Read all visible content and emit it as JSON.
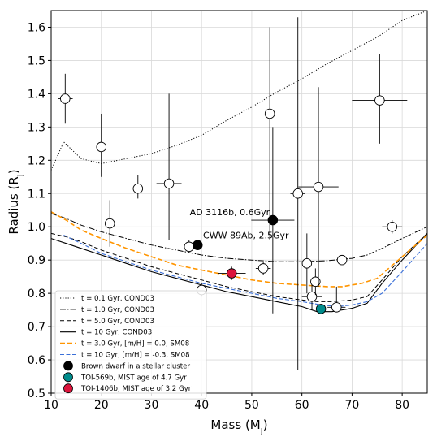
{
  "chart_data": {
    "type": "scatter",
    "xlabel": "Mass (M",
    "xlabel_sub": "J",
    "ylabel": "Radius (R",
    "ylabel_sub": "J",
    "xlim": [
      10,
      85
    ],
    "ylim": [
      0.5,
      1.65
    ],
    "xticks": [
      10,
      20,
      30,
      40,
      50,
      60,
      70,
      80
    ],
    "yticks": [
      0.5,
      0.6,
      0.7,
      0.8,
      0.9,
      1.0,
      1.1,
      1.2,
      1.3,
      1.4,
      1.5,
      1.6
    ],
    "ytick_labels": [
      "0.5",
      "0.6",
      "0.7",
      "0.8",
      "0.9",
      "1.0",
      "1.1",
      "1.2",
      "1.3",
      "1.4",
      "1.5",
      "1.6"
    ],
    "grid": true,
    "legend_position": "lower-left",
    "curves": [
      {
        "name": "t = 0.1 Gyr, COND03",
        "color": "#000000",
        "dash": "1.2,2",
        "width": 1.0,
        "x": [
          10,
          12.5,
          16,
          20,
          25,
          30,
          35,
          40,
          45,
          50,
          55,
          60,
          65,
          70,
          75,
          80,
          85
        ],
        "y": [
          1.17,
          1.255,
          1.205,
          1.19,
          1.205,
          1.22,
          1.245,
          1.275,
          1.32,
          1.36,
          1.405,
          1.445,
          1.49,
          1.53,
          1.57,
          1.62,
          1.65
        ]
      },
      {
        "name": "t = 1.0 Gyr, COND03",
        "color": "#000000",
        "dash": "7,2,1.5,2",
        "width": 1.0,
        "x": [
          10,
          13,
          16,
          20,
          25,
          30,
          35,
          40,
          45,
          50,
          55,
          60,
          65,
          70,
          73,
          76,
          80,
          85
        ],
        "y": [
          1.04,
          1.025,
          1.005,
          0.985,
          0.965,
          0.945,
          0.93,
          0.915,
          0.905,
          0.9,
          0.895,
          0.895,
          0.898,
          0.905,
          0.915,
          0.935,
          0.965,
          1.0
        ]
      },
      {
        "name": "t = 5.0 Gyr, COND03",
        "color": "#000000",
        "dash": "5,3",
        "width": 1.0,
        "x": [
          10,
          13,
          16,
          20,
          25,
          30,
          35,
          40,
          45,
          50,
          55,
          60,
          63,
          66,
          70,
          73,
          76,
          80,
          85
        ],
        "y": [
          0.98,
          0.97,
          0.955,
          0.93,
          0.905,
          0.88,
          0.86,
          0.84,
          0.82,
          0.805,
          0.79,
          0.78,
          0.775,
          0.775,
          0.78,
          0.79,
          0.84,
          0.91,
          0.98
        ]
      },
      {
        "name": "t = 10 Gyr, COND03",
        "color": "#000000",
        "dash": "",
        "width": 1.1,
        "x": [
          10,
          13,
          16,
          20,
          25,
          30,
          35,
          40,
          45,
          50,
          55,
          60,
          63,
          66,
          70,
          73,
          76,
          80,
          85
        ],
        "y": [
          0.965,
          0.95,
          0.935,
          0.915,
          0.89,
          0.865,
          0.845,
          0.825,
          0.805,
          0.79,
          0.775,
          0.76,
          0.745,
          0.745,
          0.755,
          0.77,
          0.83,
          0.9,
          0.98
        ]
      },
      {
        "name": "t = 3.0 Gyr, [m/H] = 0.0, SM08",
        "color": "#ff9500",
        "dash": "6,3",
        "width": 1.6,
        "x": [
          10,
          13,
          16,
          20,
          25,
          30,
          35,
          40,
          45,
          50,
          55,
          60,
          65,
          68,
          72,
          75,
          80,
          85
        ],
        "y": [
          1.045,
          1.02,
          0.99,
          0.965,
          0.935,
          0.91,
          0.885,
          0.87,
          0.855,
          0.84,
          0.83,
          0.825,
          0.82,
          0.82,
          0.83,
          0.845,
          0.91,
          0.975
        ]
      },
      {
        "name": "t = 10 Gyr, [m/H] = -0.3, SM08",
        "color": "#3a6fd8",
        "dash": "5,2.5",
        "width": 1.1,
        "x": [
          12.5,
          16,
          20,
          25,
          30,
          35,
          40,
          45,
          50,
          55,
          60,
          64,
          67,
          70,
          73,
          76,
          80,
          85
        ],
        "y": [
          0.975,
          0.95,
          0.92,
          0.895,
          0.87,
          0.85,
          0.83,
          0.815,
          0.8,
          0.785,
          0.775,
          0.765,
          0.76,
          0.765,
          0.775,
          0.8,
          0.865,
          0.95
        ]
      }
    ],
    "points": [
      {
        "x": 12.8,
        "y": 1.385,
        "xerr": 1.5,
        "yerr": [
          0.075,
          0.075
        ],
        "style": "open"
      },
      {
        "x": 20.0,
        "y": 1.24,
        "xerr": 1.0,
        "yerr": [
          0.09,
          0.1
        ],
        "style": "open"
      },
      {
        "x": 21.7,
        "y": 1.01,
        "xerr": 0.0,
        "yerr": [
          0.07,
          0.07
        ],
        "style": "open"
      },
      {
        "x": 27.3,
        "y": 1.115,
        "xerr": 0.0,
        "yerr": [
          0.03,
          0.04
        ],
        "style": "open"
      },
      {
        "x": 33.5,
        "y": 1.13,
        "xerr": 2.5,
        "yerr": [
          0.17,
          0.27
        ],
        "style": "open"
      },
      {
        "x": 37.5,
        "y": 0.94,
        "xerr": 0.5,
        "yerr": [
          0.02,
          0.02
        ],
        "style": "open"
      },
      {
        "x": 40.0,
        "y": 0.81,
        "xerr": 0.0,
        "yerr": [
          0.02,
          0.02
        ],
        "style": "open"
      },
      {
        "x": 39.2,
        "y": 0.945,
        "xerr": 0.0,
        "yerr": [
          0.0,
          0.0
        ],
        "style": "cluster"
      },
      {
        "x": 46.0,
        "y": 0.86,
        "xerr": 2.8,
        "yerr": [
          0.02,
          0.02
        ],
        "style": "toi1406"
      },
      {
        "x": 52.3,
        "y": 0.875,
        "xerr": 1.5,
        "yerr": [
          0.02,
          0.02
        ],
        "style": "open"
      },
      {
        "x": 53.6,
        "y": 1.34,
        "xerr": 0.0,
        "yerr": [
          0.38,
          0.26
        ],
        "style": "open"
      },
      {
        "x": 54.2,
        "y": 1.02,
        "xerr": 4.3,
        "yerr": [
          0.28,
          0.28
        ],
        "style": "cluster"
      },
      {
        "x": 59.2,
        "y": 1.1,
        "xerr": 1.5,
        "yerr": [
          0.53,
          0.53
        ],
        "style": "open"
      },
      {
        "x": 61.0,
        "y": 0.89,
        "xerr": 0.0,
        "yerr": [
          0.09,
          0.09
        ],
        "style": "open"
      },
      {
        "x": 62.0,
        "y": 0.79,
        "xerr": 2.0,
        "yerr": [
          0.04,
          0.04
        ],
        "style": "open"
      },
      {
        "x": 62.7,
        "y": 0.835,
        "xerr": 0.0,
        "yerr": [
          0.04,
          0.04
        ],
        "style": "open"
      },
      {
        "x": 63.3,
        "y": 1.12,
        "xerr": 4.0,
        "yerr": [
          0.3,
          0.3
        ],
        "style": "open"
      },
      {
        "x": 63.8,
        "y": 0.753,
        "xerr": 0.0,
        "yerr": [
          0.015,
          0.015
        ],
        "style": "toi569"
      },
      {
        "x": 66.9,
        "y": 0.758,
        "xerr": 1.8,
        "yerr": [
          0.0,
          0.062
        ],
        "style": "open"
      },
      {
        "x": 68.0,
        "y": 0.9,
        "xerr": 1.0,
        "yerr": [
          0.01,
          0.01
        ],
        "style": "open"
      },
      {
        "x": 75.5,
        "y": 1.38,
        "xerr": 5.5,
        "yerr": [
          0.13,
          0.14
        ],
        "style": "open"
      },
      {
        "x": 78.0,
        "y": 1.0,
        "xerr": 2.0,
        "yerr": [
          0.02,
          0.02
        ],
        "style": "open"
      }
    ],
    "annotations": [
      {
        "text": "AD 3116b, 0.6Gyr",
        "x": 53.6,
        "y": 1.035,
        "anchor": "end"
      },
      {
        "text": "CWW 89Ab, 2.5Gyr",
        "x": 40.3,
        "y": 0.965,
        "anchor": "start"
      }
    ],
    "legend": [
      {
        "label": "t = 0.1 Gyr, COND03",
        "kind": "line",
        "ref": 0
      },
      {
        "label": "t = 1.0 Gyr, COND03",
        "kind": "line",
        "ref": 1
      },
      {
        "label": "t = 5.0 Gyr, COND03",
        "kind": "line",
        "ref": 2
      },
      {
        "label": "t = 10 Gyr, COND03",
        "kind": "line",
        "ref": 3
      },
      {
        "label": "t = 3.0 Gyr, [m/H] = 0.0, SM08",
        "kind": "line",
        "ref": 4
      },
      {
        "label": "t = 10 Gyr, [m/H] = -0.3, SM08",
        "kind": "line",
        "ref": 5
      },
      {
        "label": "Brown dwarf in a stellar cluster",
        "kind": "marker",
        "style": "cluster"
      },
      {
        "label": "TOI-569b, MIST age of 4.7 Gyr",
        "kind": "marker",
        "style": "toi569"
      },
      {
        "label": "TOI-1406b, MIST age of 3.2 Gyr",
        "kind": "marker",
        "style": "toi1406"
      }
    ],
    "marker_colors": {
      "open": "#ffffff",
      "cluster": "#000000",
      "toi569": "#008b8b",
      "toi1406": "#dc143c"
    }
  }
}
